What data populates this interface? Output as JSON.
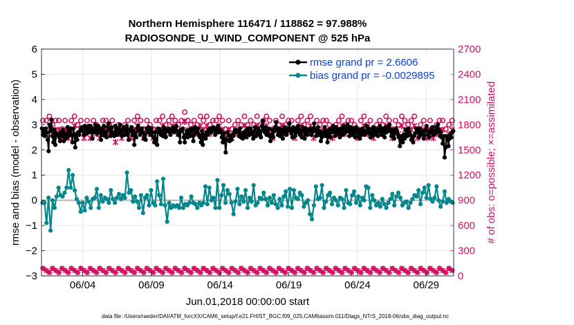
{
  "chart_data": {
    "type": "line",
    "title": "Northern Hemisphere 116471 / 118862 = 97.988%",
    "subtitle": "RADIOSONDE_U_WIND_COMPONENT @ 525 hPa",
    "xlabel": "Jun.01,2018 00:00:00 start",
    "ylabel": "rmse and bias (model - observation)",
    "ylabel_right": "# of obs: o=possible; ×=assimilated",
    "footer": "data file: /Users/raeder/DAI/ATM_forcXX/CAM6_setup/f.e21.FHIST_BGC.f09_025.CAM6assim.011/Diags_NTrS_2018-06/obs_diag_output.nc",
    "x_range": [
      1.0,
      31.0
    ],
    "ylim": [
      -3,
      6
    ],
    "ylim_right": [
      0,
      2700
    ],
    "grid": true,
    "legend_position": "top-right",
    "xticks": [
      4,
      9,
      14,
      19,
      24,
      29
    ],
    "xtick_labels": [
      "06/04",
      "06/09",
      "06/14",
      "06/19",
      "06/24",
      "06/29"
    ],
    "yticks": [
      -3,
      -2,
      -1,
      0,
      1,
      2,
      3,
      4,
      5,
      6
    ],
    "ytick_labels": [
      "−3",
      "−2",
      "−1",
      "0",
      "1",
      "2",
      "3",
      "4",
      "5",
      "6"
    ],
    "yticks_right": [
      0,
      300,
      600,
      900,
      1200,
      1500,
      1800,
      2100,
      2400,
      2700
    ],
    "ytick_labels_right": [
      "0",
      "300",
      "600",
      "900",
      "1200",
      "1500",
      "1800",
      "2100",
      "2400",
      "2700"
    ],
    "colors": {
      "rmse": "#000000",
      "bias": "#00868b",
      "obs": "#d1135f",
      "zero_line": "#b4b4b4",
      "grid": "#e6e6e6"
    },
    "series": [
      {
        "name": "rmse grand pr = 2.6606",
        "values": [
          2.85,
          2.6,
          2.8,
          2.55,
          2.85,
          2.7,
          2.4,
          1.95,
          3.0,
          2.75,
          3.2,
          2.55,
          2.3,
          2.8,
          2.2,
          2.65,
          2.6,
          2.6,
          2.5,
          2.35,
          2.7,
          2.55,
          2.8,
          2.35,
          2.65,
          2.45,
          2.5,
          2.9,
          2.55,
          2.75,
          2.85,
          2.6,
          2.3,
          2.85,
          2.6,
          2.1,
          2.6,
          2.4,
          2.7,
          2.6,
          2.75,
          2.85,
          2.9,
          2.75,
          2.6,
          2.95,
          2.85,
          2.65,
          2.8,
          2.95,
          2.7,
          2.95,
          2.75,
          2.45,
          2.85,
          2.7,
          3.0,
          2.8,
          2.65,
          2.95,
          2.85,
          2.7,
          2.4,
          2.85,
          2.6,
          2.95,
          2.55,
          2.7,
          2.5,
          2.9,
          3.05,
          2.8,
          2.55,
          2.9,
          2.7,
          2.65,
          2.55,
          2.95,
          2.7,
          2.6,
          2.85,
          2.75,
          3.0,
          2.65,
          2.55,
          2.8,
          2.9,
          2.6,
          2.75,
          2.95,
          2.6,
          2.4,
          2.8,
          2.75,
          2.9,
          2.6,
          2.75,
          2.2,
          2.65,
          2.5,
          2.85,
          2.95,
          2.75,
          2.6,
          2.7,
          2.85,
          2.7,
          2.45,
          2.6,
          2.4,
          2.85,
          2.7,
          2.9,
          2.75,
          2.6,
          2.85,
          2.7,
          2.5,
          2.3,
          2.7,
          2.4,
          2.2,
          2.85,
          2.7,
          2.8,
          2.6,
          2.75,
          2.55,
          2.9,
          2.7,
          2.5,
          2.8,
          2.75,
          2.85,
          2.7,
          2.6,
          2.75,
          2.8,
          2.9,
          2.7,
          2.85,
          2.95,
          2.75,
          2.6,
          2.7,
          2.3,
          2.8,
          2.75,
          2.85,
          2.5,
          2.3,
          2.6,
          2.75,
          2.5,
          2.65,
          2.8,
          2.55,
          2.85,
          2.8,
          2.35,
          2.6,
          2.9,
          2.85,
          2.7,
          2.85,
          2.6,
          2.5,
          2.3,
          2.75,
          2.2,
          2.6,
          2.55,
          2.45,
          2.7,
          2.6,
          2.8,
          2.7,
          2.85,
          2.7,
          2.8,
          2.9,
          2.8,
          2.6,
          2.85,
          2.7,
          2.95,
          2.7,
          2.8,
          2.75,
          2.5,
          2.3,
          2.65,
          2.4,
          1.9,
          2.4,
          2.7,
          2.6,
          2.35,
          2.5,
          2.4,
          2.6,
          2.55,
          2.7,
          2.8,
          2.7,
          2.75,
          2.7,
          2.55,
          2.85,
          2.5,
          2.65,
          2.45,
          2.7,
          2.55,
          2.75,
          2.5,
          2.85,
          2.7,
          2.6,
          2.85,
          2.7,
          2.65,
          2.45,
          2.75,
          2.9,
          2.55,
          2.7,
          2.85,
          2.75,
          2.6,
          2.5,
          2.95,
          3.15,
          2.8,
          2.7,
          2.9,
          2.6,
          2.75,
          2.85,
          2.55,
          2.35,
          2.6,
          2.8,
          2.5,
          2.75,
          2.9,
          3.1,
          2.8,
          2.6,
          2.85,
          2.55,
          2.7,
          2.8,
          2.45,
          2.65,
          2.9,
          2.8,
          2.6,
          2.75,
          2.85,
          3.05,
          2.8,
          2.65,
          2.5,
          2.9,
          2.75,
          2.55,
          2.85,
          2.7,
          2.95,
          2.8,
          2.6,
          2.75,
          2.5,
          2.9,
          2.75,
          2.45,
          2.85,
          2.7,
          2.6,
          2.8,
          2.75,
          2.85,
          2.6,
          2.7,
          2.85,
          3.05,
          2.8,
          2.55,
          2.7,
          2.9,
          2.6,
          2.75,
          2.35,
          2.5,
          2.65,
          2.7,
          2.9,
          2.55,
          2.75,
          2.3,
          2.65,
          2.8,
          2.5,
          2.85,
          2.7,
          2.95,
          2.8,
          2.55,
          2.9,
          2.75,
          2.65,
          2.8,
          2.5,
          2.85,
          2.7,
          2.6,
          2.95,
          2.8,
          2.7,
          2.85,
          3.0,
          2.75,
          2.55,
          2.9,
          2.7,
          2.6,
          2.85,
          2.75,
          2.5,
          2.9,
          2.7,
          2.55,
          2.8,
          2.45,
          2.75,
          2.6,
          2.85,
          2.75,
          2.6,
          2.7,
          2.95,
          2.75,
          2.85,
          2.65,
          2.5,
          2.8,
          2.55,
          2.9,
          2.6,
          2.75,
          2.85,
          2.7,
          2.55,
          2.8,
          2.95,
          2.7,
          2.6,
          2.85,
          2.75,
          2.5,
          2.9,
          2.7,
          2.8,
          2.9,
          3.0,
          2.75,
          2.55,
          2.8,
          2.65,
          2.45,
          2.7,
          2.85,
          2.75,
          2.6,
          2.5,
          2.15,
          2.35,
          2.55,
          2.3,
          2.6,
          2.45,
          2.8,
          2.7,
          2.55,
          2.85,
          2.7,
          2.6,
          2.4,
          2.5,
          2.3,
          2.55,
          2.65,
          2.85,
          2.75,
          2.7,
          2.5,
          2.85,
          2.6,
          2.65,
          2.75,
          2.45,
          2.6,
          2.8,
          2.95,
          2.75,
          2.6,
          2.5,
          2.7,
          2.8,
          2.9,
          2.6,
          2.75,
          2.65,
          2.9,
          2.7,
          3.0,
          2.8,
          2.55,
          2.7,
          2.5,
          2.25,
          2.55,
          1.7,
          2.1,
          2.55,
          2.4,
          2.15,
          2.45,
          2.6,
          2.5,
          2.7,
          2.75
        ]
      },
      {
        "name": "bias grand pr = -0.0029895",
        "values": [
          -0.1,
          -0.1,
          -0.9,
          0.1,
          -1.2,
          0.0,
          -0.3,
          0.15,
          0.5,
          0.2,
          0.15,
          0.3,
          0.5,
          1.2,
          0.5,
          1.0,
          0.4,
          0.05,
          -0.1,
          -0.45,
          -0.1,
          -0.4,
          0.1,
          -0.05,
          -0.3,
          0.05,
          0.1,
          0.45,
          -0.3,
          0.2,
          -0.05,
          0.1,
          0.05,
          -0.1,
          0.4,
          0.05,
          -0.1,
          0.1,
          0.25,
          0.05,
          0.2,
          0.1,
          1.1,
          0.3,
          0.4,
          -0.05,
          0.15,
          -0.05,
          -0.3,
          0.2,
          -0.5,
          0.1,
          0.2,
          -0.2,
          0.4,
          -0.1,
          -0.2,
          0.75,
          0.2,
          -0.15,
          0.85,
          -0.2,
          -0.85,
          -0.1,
          -0.3,
          -0.2,
          -0.25,
          -0.2,
          -0.3,
          0.1,
          -0.3,
          -0.15,
          -0.2,
          -0.1,
          0.15,
          -0.1,
          -0.15,
          -0.3,
          -0.1,
          -0.2,
          -0.1,
          0.55,
          -0.15,
          0.5,
          0.0,
          0.1,
          -0.3,
          0.8,
          -0.3,
          0.2,
          0.6,
          -0.1,
          0.4,
          0.25,
          -0.1,
          -0.55,
          -0.05,
          0.45,
          -0.15,
          0.15,
          -0.05,
          0.4,
          -0.3,
          0.1,
          -0.05,
          0.6,
          -0.2,
          -0.1,
          0.1,
          0.05,
          0.3,
          0.05,
          -0.2,
          0.1,
          -0.1,
          0.2,
          -0.15,
          -0.3,
          0.05,
          -0.2,
          0.15,
          0.35,
          -0.25,
          0.45,
          -0.3,
          0.4,
          0.1,
          0.05,
          0.3,
          0.2,
          -0.25,
          -0.1,
          0.0,
          -0.55,
          -0.75,
          -0.2,
          0.55,
          0.05,
          0.1,
          0.6,
          -0.3,
          -0.05,
          0.2,
          0.3,
          -0.15,
          0.1,
          0.0,
          -0.2,
          0.1,
          0.05,
          -0.3,
          0.4,
          -0.1,
          -0.15,
          0.2,
          0.35,
          -0.1,
          0.15,
          -0.2,
          0.1,
          0.0,
          0.55,
          0.5,
          -0.3,
          0.2,
          0.0,
          -0.2,
          -0.1,
          -0.25,
          0.05,
          -0.15,
          -0.3,
          -0.1,
          0.05,
          0.25,
          -0.2,
          0.15,
          0.3,
          0.1,
          -0.2,
          -0.1,
          -0.05,
          -0.3,
          -0.1,
          0.05,
          0.2,
          0.15,
          0.4,
          -0.15,
          0.3,
          0.5,
          0.1,
          0.6,
          0.05,
          -0.05,
          0.1,
          0.55,
          0.0,
          -0.25,
          -0.05,
          0.35,
          -0.1,
          0.05,
          -0.05,
          -0.1
        ]
      }
    ],
    "obs_possible": [
      1800,
      1800,
      1850,
      1750,
      1800,
      1800,
      1700,
      1800,
      1700,
      1800,
      1850,
      1750,
      1800,
      1700,
      1800,
      1700,
      1800,
      1750,
      1700,
      1800,
      1800,
      1750,
      1800,
      1650,
      1750,
      1700,
      1750,
      1800,
      1700,
      1800,
      1850,
      1800,
      1700,
      1800,
      1750,
      1700,
      1800,
      1800,
      1850,
      1750,
      1800,
      1850,
      1800,
      1750,
      1800,
      1900,
      1800,
      1750,
      1800,
      1750,
      1850,
      1800,
      1850,
      1750,
      1800,
      1800,
      1850,
      1800,
      1700,
      1800,
      1700,
      1750,
      1800,
      1750,
      1850,
      1750,
      1800,
      1750,
      1850,
      1750,
      1800,
      1850,
      1800,
      1700,
      1800,
      1750,
      1850,
      1750,
      1800,
      1800,
      1700,
      1800,
      1850,
      1750,
      1800,
      1850,
      1700,
      1800,
      1750,
      1800,
      1800,
      1750,
      1700,
      1750,
      1800,
      1850,
      1750,
      1800,
      1800,
      1750,
      1700,
      1800,
      1850,
      1750,
      1800,
      1700,
      1750,
      1800,
      1750,
      1850,
      1800,
      1700,
      1800,
      1750,
      1850,
      1800,
      1750,
      1800,
      1850,
      1700,
      1750,
      1800,
      1700,
      1800,
      1700,
      1750,
      1800,
      1800,
      1700,
      1750,
      1800
    ]
  }
}
